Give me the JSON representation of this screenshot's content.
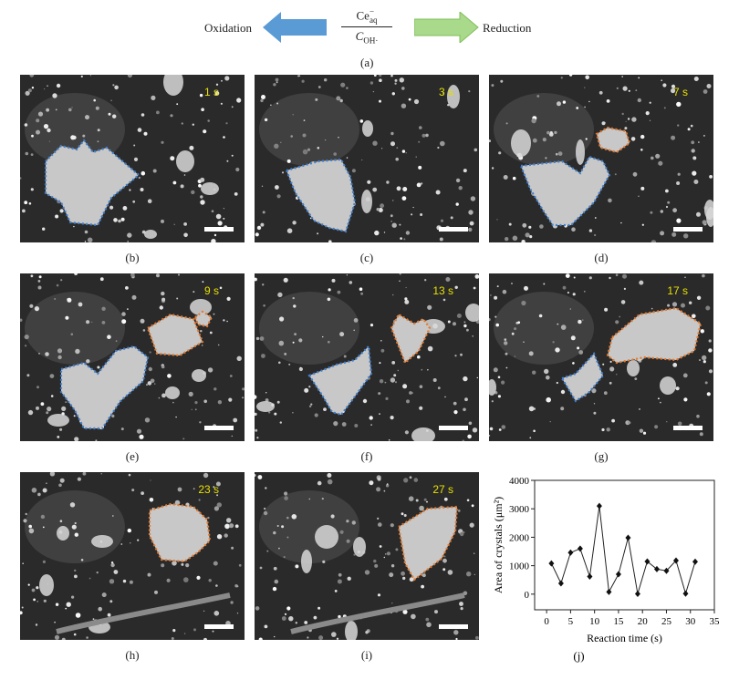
{
  "header": {
    "oxidation_label": "Oxidation",
    "reduction_label": "Reduction",
    "numerator": "Ce",
    "numerator_sup": "−",
    "numerator_sub": "aq",
    "denominator": "C",
    "denominator_sub": "OH·",
    "panel_label": "(a)",
    "colors": {
      "oxidation_arrow": "#5b9bd5",
      "reduction_arrow": "#a9d98a"
    }
  },
  "panels": [
    {
      "label": "(b)",
      "time": "1 s"
    },
    {
      "label": "(c)",
      "time": "3 s"
    },
    {
      "label": "(d)",
      "time": "7 s"
    },
    {
      "label": "(e)",
      "time": "9 s"
    },
    {
      "label": "(f)",
      "time": "13 s"
    },
    {
      "label": "(g)",
      "time": "17 s"
    },
    {
      "label": "(h)",
      "time": "23 s"
    },
    {
      "label": "(i)",
      "time": "27 s"
    }
  ],
  "outline_colors": {
    "blue": "#3f7fd0",
    "orange": "#e8792a"
  },
  "chart_data": {
    "type": "line",
    "panel_label": "(j)",
    "xlabel": "Reaction time (s)",
    "ylabel": "Area of crystals (μm²)",
    "x": [
      1,
      3,
      5,
      7,
      9,
      11,
      13,
      15,
      17,
      19,
      21,
      23,
      25,
      27,
      29,
      31
    ],
    "values": [
      1080,
      380,
      1460,
      1600,
      620,
      3100,
      80,
      700,
      1980,
      10,
      1150,
      880,
      820,
      1180,
      20,
      1140
    ],
    "xticks": [
      "0",
      "5",
      "10",
      "15",
      "20",
      "25",
      "30",
      "35"
    ],
    "yticks": [
      "0",
      "1000",
      "2000",
      "3000",
      "4000"
    ],
    "xlim": [
      -2.5,
      35
    ],
    "ylim": [
      -550,
      4000
    ],
    "marker": "diamond",
    "grid": false
  }
}
